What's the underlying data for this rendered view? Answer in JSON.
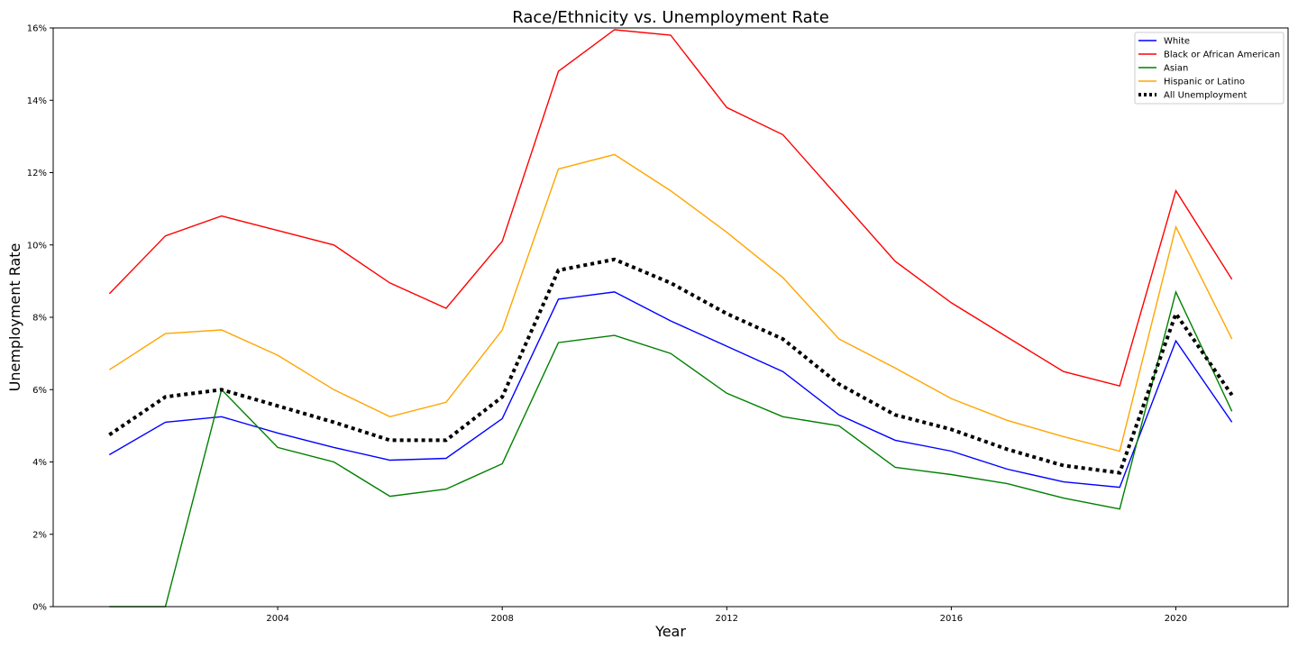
{
  "chart_data": {
    "type": "line",
    "title": "Race/Ethnicity vs. Unemployment Rate",
    "xlabel": "Year",
    "ylabel": "Unemployment Rate",
    "xlim": [
      2000,
      2022
    ],
    "ylim": [
      0,
      16
    ],
    "x_ticks": [
      2004,
      2008,
      2012,
      2016,
      2020
    ],
    "y_ticks": [
      0,
      2,
      4,
      6,
      8,
      10,
      12,
      14,
      16
    ],
    "y_tick_format": "%",
    "grid": false,
    "legend_position": "top-right",
    "x": [
      2001,
      2002,
      2003,
      2004,
      2005,
      2006,
      2007,
      2008,
      2009,
      2010,
      2011,
      2012,
      2013,
      2014,
      2015,
      2016,
      2017,
      2018,
      2019,
      2020,
      2021
    ],
    "series": [
      {
        "name": "White",
        "color": "#0000ff",
        "style": "solid",
        "values": [
          4.2,
          5.1,
          5.25,
          4.8,
          4.4,
          4.05,
          4.1,
          5.2,
          8.5,
          8.7,
          7.9,
          7.2,
          6.5,
          5.3,
          4.6,
          4.3,
          3.8,
          3.45,
          3.3,
          7.35,
          5.1
        ]
      },
      {
        "name": "Black or African American",
        "color": "#ff0000",
        "style": "solid",
        "values": [
          8.65,
          10.25,
          10.8,
          10.4,
          10.0,
          8.95,
          8.25,
          10.1,
          14.8,
          15.95,
          15.8,
          13.8,
          13.05,
          11.3,
          9.55,
          8.4,
          7.45,
          6.5,
          6.1,
          11.5,
          9.05
        ]
      },
      {
        "name": "Asian",
        "color": "#008000",
        "style": "solid",
        "values": [
          0.0,
          0.0,
          6.0,
          4.4,
          4.0,
          3.05,
          3.25,
          3.95,
          7.3,
          7.5,
          7.0,
          5.9,
          5.25,
          5.0,
          3.85,
          3.65,
          3.4,
          3.0,
          2.7,
          8.7,
          5.4
        ]
      },
      {
        "name": "Hispanic or Latino",
        "color": "#ffa500",
        "style": "solid",
        "values": [
          6.55,
          7.55,
          7.65,
          6.95,
          6.0,
          5.25,
          5.65,
          7.65,
          12.1,
          12.5,
          11.5,
          10.35,
          9.1,
          7.4,
          6.6,
          5.75,
          5.15,
          4.7,
          4.3,
          10.5,
          7.4
        ]
      },
      {
        "name": "All Unemployment",
        "color": "#000000",
        "style": "dotted",
        "values": [
          4.75,
          5.8,
          6.0,
          5.55,
          5.1,
          4.6,
          4.6,
          5.8,
          9.3,
          9.6,
          8.95,
          8.1,
          7.4,
          6.15,
          5.3,
          4.9,
          4.35,
          3.9,
          3.7,
          8.1,
          5.85
        ]
      }
    ]
  }
}
